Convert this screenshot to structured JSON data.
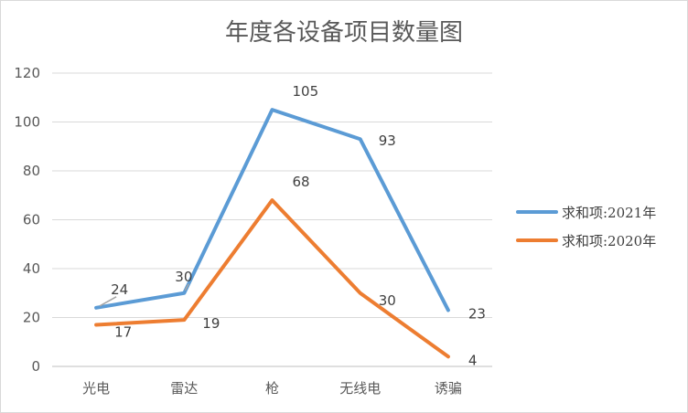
{
  "chart_data": {
    "type": "line",
    "title": "年度各设备项目数量图",
    "categories": [
      "光电",
      "雷达",
      "枪",
      "无线电",
      "诱骗"
    ],
    "ylim": [
      0,
      120
    ],
    "yticks": [
      0,
      20,
      40,
      60,
      80,
      100,
      120
    ],
    "grid": true,
    "legend_position": "right",
    "series": [
      {
        "name": "求和项:2021年",
        "values": [
          24,
          30,
          105,
          93,
          23
        ],
        "color": "#5b9bd5"
      },
      {
        "name": "求和项:2020年",
        "values": [
          17,
          19,
          68,
          30,
          4
        ],
        "color": "#ed7d31"
      }
    ]
  }
}
